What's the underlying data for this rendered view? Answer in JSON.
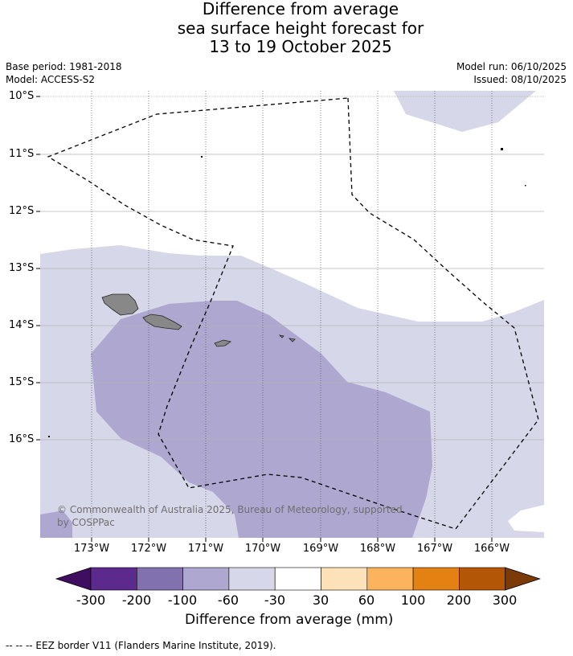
{
  "title": {
    "line1": "Difference from average",
    "line2": "sea surface height forecast for",
    "line3": "13 to 19 October 2025"
  },
  "meta": {
    "base_period": "Base period: 1981-2018",
    "model": "Model: ACCESS-S2",
    "model_run": "Model run: 06/10/2025",
    "issued": "Issued: 08/10/2025"
  },
  "axes": {
    "lat_labels": [
      "10°S",
      "11°S",
      "12°S",
      "13°S",
      "14°S",
      "15°S",
      "16°S"
    ],
    "lon_labels": [
      "173°W",
      "172°W",
      "171°W",
      "170°W",
      "169°W",
      "168°W",
      "167°W",
      "166°W"
    ]
  },
  "copyright": {
    "line1": "© Commonwealth of Australia 2025, Bureau of Meteorology, supported",
    "line2": "by COSPPac"
  },
  "colorbar": {
    "title": "Difference from average (mm)",
    "tick_labels": [
      "-300",
      "-200",
      "-100",
      "-60",
      "-30",
      "30",
      "60",
      "100",
      "200",
      "300"
    ],
    "colors": [
      "#3f0e61",
      "#5b2a8c",
      "#8171ae",
      "#aea8d1",
      "#d7d7ea",
      "#ffffff",
      "#fde1b8",
      "#fbb35d",
      "#e38213",
      "#b35707",
      "#7b3a08"
    ]
  },
  "footnote": "-- -- -- EEZ border V11 (Flanders Marine Institute, 2019).",
  "colors": {
    "land": "#888888",
    "band_60": "#d7d7ea",
    "band_100": "#aea8d1"
  }
}
